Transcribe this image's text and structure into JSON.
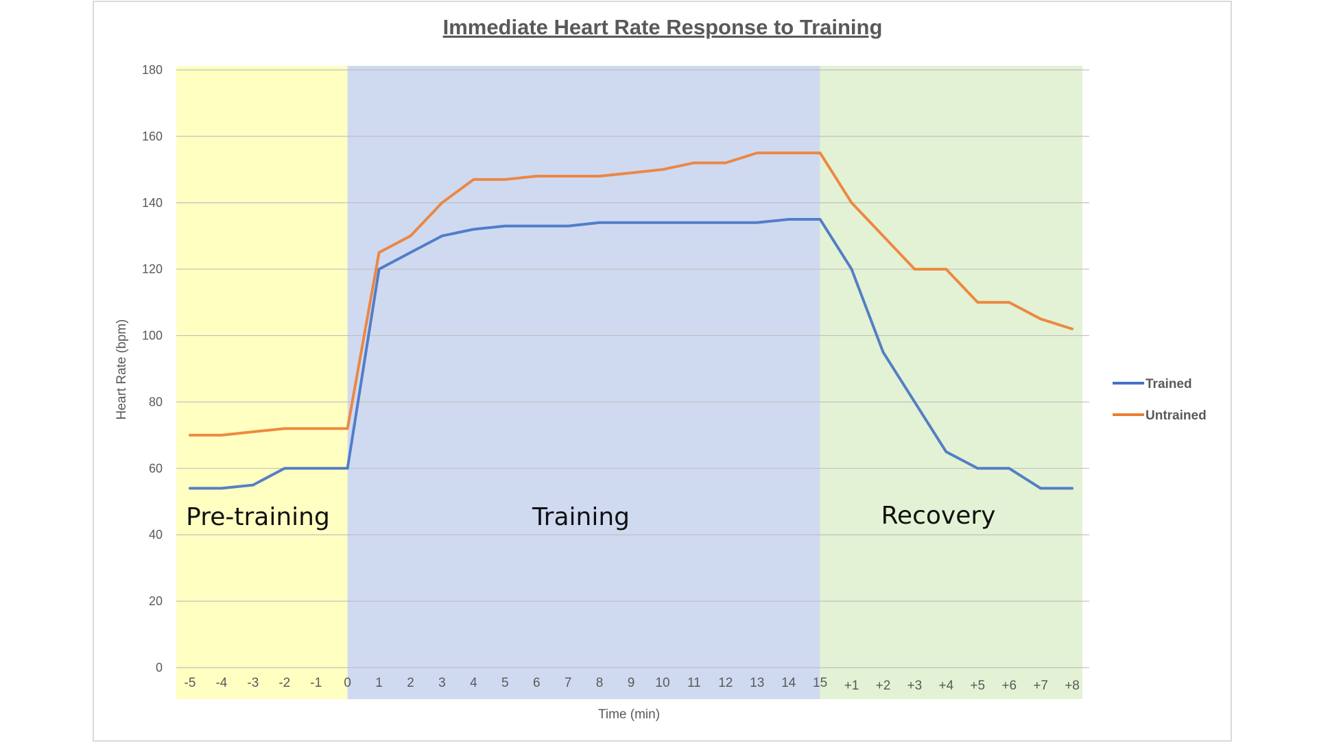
{
  "chart_data": {
    "type": "line",
    "title": "Immediate Heart Rate Response to Training",
    "xlabel": "Time (min)",
    "ylabel": "Heart Rate (bpm)",
    "ylim": [
      0,
      180
    ],
    "yticks": [
      "0",
      "20",
      "40",
      "60",
      "80",
      "100",
      "120",
      "140",
      "160",
      "180"
    ],
    "categories": [
      "-5",
      "-4",
      "-3",
      "-2",
      "-1",
      "0",
      "1",
      "2",
      "3",
      "4",
      "5",
      "6",
      "7",
      "8",
      "9",
      "10",
      "11",
      "12",
      "13",
      "14",
      "15",
      "+1",
      "+2",
      "+3",
      "+4",
      "+5",
      "+6",
      "+7",
      "+8"
    ],
    "regions": [
      {
        "label": "Pre-training",
        "from": "-5",
        "to": "0",
        "color": "#ffffc2"
      },
      {
        "label": "Training",
        "from": "0",
        "to": "15",
        "color": "#cfdaf1"
      },
      {
        "label": "Recovery",
        "from": "15",
        "to": "+8",
        "color": "#e3f2d4"
      }
    ],
    "series": [
      {
        "name": "Trained",
        "color": "#4472c4",
        "values": [
          54,
          54,
          55,
          60,
          60,
          60,
          120,
          125,
          130,
          132,
          133,
          133,
          133,
          134,
          134,
          134,
          134,
          134,
          134,
          135,
          135,
          120,
          95,
          80,
          65,
          60,
          60,
          54,
          54
        ]
      },
      {
        "name": "Untrained",
        "color": "#ed7d31",
        "values": [
          70,
          70,
          71,
          72,
          72,
          72,
          125,
          130,
          140,
          147,
          147,
          148,
          148,
          148,
          149,
          150,
          152,
          152,
          155,
          155,
          155,
          140,
          130,
          120,
          120,
          110,
          110,
          105,
          102
        ]
      }
    ],
    "legend_position": "right",
    "grid": true
  }
}
